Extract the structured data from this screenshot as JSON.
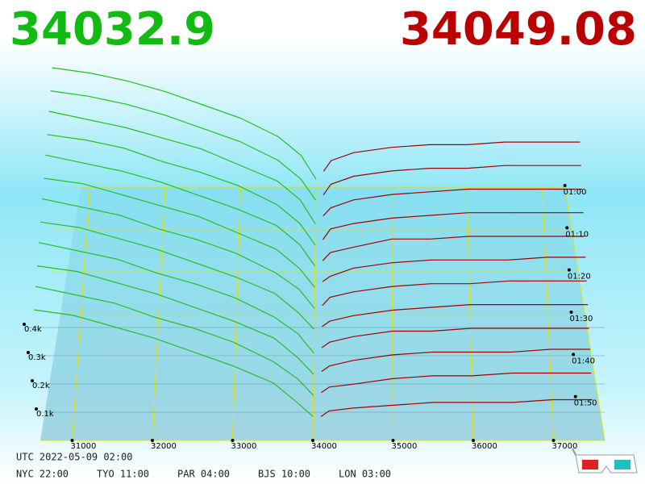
{
  "chart_data": {
    "type": "depth3d",
    "bid_price": 34032.9,
    "ask_price": 34049.08,
    "bid_color": "#11bb11",
    "ask_color": "#bb0000",
    "bid_line_color": "#22c022",
    "ask_line_color": "#a00000",
    "xticks": [
      31000,
      32000,
      33000,
      34000,
      35000,
      36000,
      37000
    ],
    "depth_ticks": [
      {
        "value": 0.1,
        "label": "0.1k"
      },
      {
        "value": 0.2,
        "label": "0.2k"
      },
      {
        "value": 0.3,
        "label": "0.3k"
      },
      {
        "value": 0.4,
        "label": "0.4k"
      }
    ],
    "time_ticks": [
      {
        "value": 60,
        "label": "01:00"
      },
      {
        "value": 70,
        "label": "01:10"
      },
      {
        "value": 80,
        "label": "01:20"
      },
      {
        "value": 90,
        "label": "01:30"
      },
      {
        "value": 100,
        "label": "01:40"
      },
      {
        "value": 110,
        "label": "01:50"
      }
    ],
    "bid_prices": [
      30500,
      31000,
      31500,
      32000,
      32500,
      33000,
      33500,
      33800,
      34000
    ],
    "ask_prices": [
      34100,
      34200,
      34500,
      35000,
      35500,
      36000,
      36500,
      37000,
      37500
    ],
    "snapshots": [
      {
        "minute": 60,
        "bid": [
          0.45,
          0.43,
          0.4,
          0.36,
          0.31,
          0.26,
          0.19,
          0.12,
          0.03
        ],
        "ask": [
          0.06,
          0.1,
          0.13,
          0.15,
          0.16,
          0.16,
          0.17,
          0.17,
          0.17
        ]
      },
      {
        "minute": 65,
        "bid": [
          0.44,
          0.42,
          0.39,
          0.35,
          0.3,
          0.25,
          0.18,
          0.11,
          0.03
        ],
        "ask": [
          0.05,
          0.09,
          0.12,
          0.14,
          0.15,
          0.15,
          0.16,
          0.16,
          0.16
        ]
      },
      {
        "minute": 70,
        "bid": [
          0.44,
          0.41,
          0.38,
          0.34,
          0.3,
          0.24,
          0.18,
          0.11,
          0.02
        ],
        "ask": [
          0.05,
          0.08,
          0.11,
          0.13,
          0.14,
          0.15,
          0.15,
          0.15,
          0.15
        ]
      },
      {
        "minute": 75,
        "bid": [
          0.43,
          0.41,
          0.38,
          0.33,
          0.29,
          0.24,
          0.17,
          0.1,
          0.02
        ],
        "ask": [
          0.04,
          0.08,
          0.1,
          0.12,
          0.13,
          0.14,
          0.14,
          0.14,
          0.14
        ]
      },
      {
        "minute": 80,
        "bid": [
          0.43,
          0.4,
          0.37,
          0.33,
          0.28,
          0.23,
          0.17,
          0.1,
          0.02
        ],
        "ask": [
          0.04,
          0.07,
          0.09,
          0.12,
          0.12,
          0.13,
          0.13,
          0.13,
          0.13
        ]
      },
      {
        "minute": 85,
        "bid": [
          0.42,
          0.4,
          0.36,
          0.32,
          0.28,
          0.22,
          0.16,
          0.09,
          0.02
        ],
        "ask": [
          0.04,
          0.06,
          0.09,
          0.11,
          0.12,
          0.12,
          0.12,
          0.13,
          0.13
        ]
      },
      {
        "minute": 90,
        "bid": [
          0.42,
          0.39,
          0.36,
          0.31,
          0.27,
          0.22,
          0.15,
          0.09,
          0.02
        ],
        "ask": [
          0.03,
          0.06,
          0.08,
          0.1,
          0.11,
          0.11,
          0.12,
          0.12,
          0.12
        ]
      },
      {
        "minute": 95,
        "bid": [
          0.41,
          0.39,
          0.35,
          0.31,
          0.26,
          0.21,
          0.15,
          0.08,
          0.02
        ],
        "ask": [
          0.03,
          0.05,
          0.07,
          0.09,
          0.1,
          0.11,
          0.11,
          0.11,
          0.11
        ]
      },
      {
        "minute": 100,
        "bid": [
          0.41,
          0.38,
          0.35,
          0.3,
          0.26,
          0.21,
          0.14,
          0.08,
          0.01
        ],
        "ask": [
          0.03,
          0.05,
          0.07,
          0.09,
          0.09,
          0.1,
          0.1,
          0.1,
          0.1
        ]
      },
      {
        "minute": 105,
        "bid": [
          0.4,
          0.38,
          0.34,
          0.3,
          0.25,
          0.2,
          0.14,
          0.07,
          0.01
        ],
        "ask": [
          0.02,
          0.04,
          0.06,
          0.08,
          0.09,
          0.09,
          0.09,
          0.1,
          0.1
        ]
      },
      {
        "minute": 110,
        "bid": [
          0.4,
          0.37,
          0.34,
          0.29,
          0.25,
          0.2,
          0.13,
          0.07,
          0.01
        ],
        "ask": [
          0.02,
          0.04,
          0.05,
          0.07,
          0.08,
          0.08,
          0.09,
          0.09,
          0.09
        ]
      },
      {
        "minute": 115,
        "bid": [
          0.39,
          0.37,
          0.33,
          0.29,
          0.24,
          0.19,
          0.13,
          0.06,
          0.01
        ],
        "ask": [
          0.01,
          0.03,
          0.04,
          0.05,
          0.06,
          0.06,
          0.06,
          0.07,
          0.07
        ]
      }
    ]
  },
  "footer": {
    "utc": "UTC 2022-05-09 02:00",
    "zones": [
      "NYC 22:00",
      "TYO 11:00",
      "PAR 04:00",
      "BJS 10:00",
      "LON 03:00"
    ]
  }
}
